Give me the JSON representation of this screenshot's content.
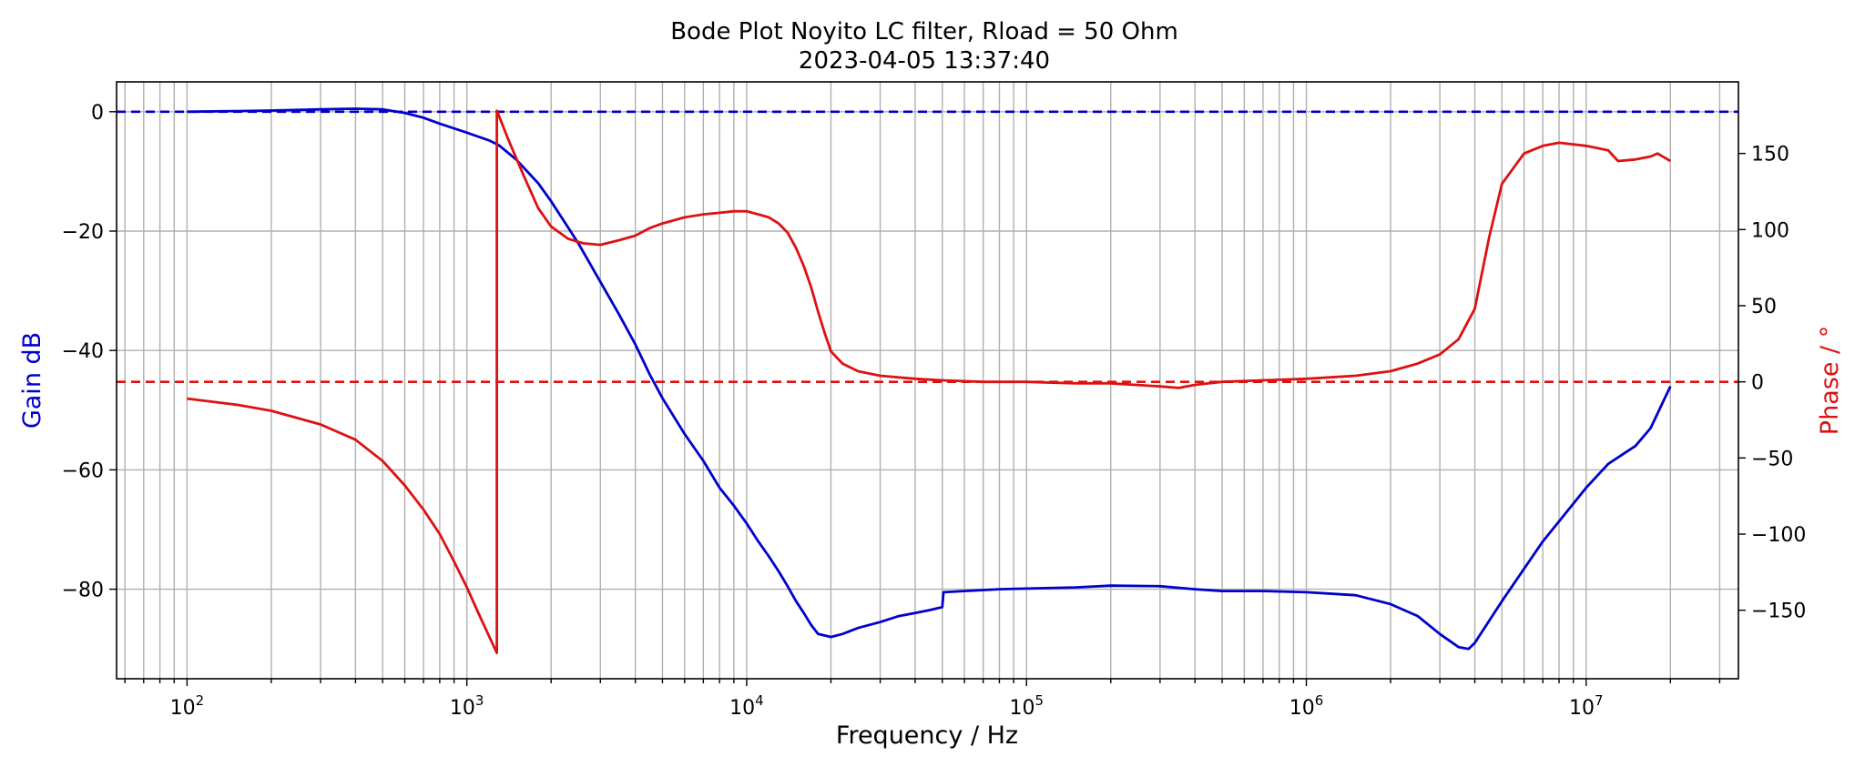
{
  "chart_data": {
    "type": "line",
    "title": "Bode Plot Noyito LC filter, Rload = 50 Ohm",
    "subtitle": "2023-04-05 13:37:40",
    "xlabel": "Frequency / Hz",
    "ylabel_left": "Gain dB",
    "ylabel_right": "Phase / °",
    "xscale": "log",
    "xlim": [
      56,
      35000000
    ],
    "ylim_left": [
      -95,
      5
    ],
    "ylim_right": [
      -195,
      197
    ],
    "grid": true,
    "x_ticks": [
      {
        "base": "10",
        "exp": "2",
        "value": 100
      },
      {
        "base": "10",
        "exp": "3",
        "value": 1000
      },
      {
        "base": "10",
        "exp": "4",
        "value": 10000
      },
      {
        "base": "10",
        "exp": "5",
        "value": 100000
      },
      {
        "base": "10",
        "exp": "6",
        "value": 1000000
      },
      {
        "base": "10",
        "exp": "7",
        "value": 10000000
      }
    ],
    "y_ticks_left": [
      {
        "label": "0",
        "value": 0
      },
      {
        "label": "−20",
        "value": -20
      },
      {
        "label": "−40",
        "value": -40
      },
      {
        "label": "−60",
        "value": -60
      },
      {
        "label": "−80",
        "value": -80
      }
    ],
    "y_ticks_right": [
      {
        "label": "150",
        "value": 150
      },
      {
        "label": "100",
        "value": 100
      },
      {
        "label": "50",
        "value": 50
      },
      {
        "label": "0",
        "value": 0
      },
      {
        "label": "−50",
        "value": -50
      },
      {
        "label": "−100",
        "value": -100
      },
      {
        "label": "−150",
        "value": -150
      }
    ],
    "reference_lines": [
      {
        "axis": "left",
        "value": 0,
        "color": "#0000cc",
        "style": "dashed"
      },
      {
        "axis": "right",
        "value": 0,
        "color": "#dd1111",
        "style": "dashed"
      }
    ],
    "series": [
      {
        "axis": "left",
        "color": "#0000cc",
        "x": [
          100,
          150,
          200,
          300,
          400,
          500,
          600,
          700,
          800,
          1000,
          1200,
          1300,
          1500,
          1800,
          2000,
          2500,
          3000,
          3500,
          4000,
          4500,
          5000,
          6000,
          7000,
          8000,
          9000,
          10000,
          11000,
          12000,
          13000,
          14000,
          15000,
          16000,
          17000,
          18000,
          20000,
          22000,
          25000,
          30000,
          35000,
          40000,
          45000,
          50000,
          50500,
          60000,
          80000,
          100000,
          150000,
          200000,
          300000,
          400000,
          500000,
          700000,
          1000000,
          1500000,
          2000000,
          2500000,
          3000000,
          3500000,
          3800000,
          4000000,
          5000000,
          7000000,
          10000000,
          12000000,
          15000000,
          17000000,
          20000000
        ],
        "y": [
          0,
          0.1,
          0.2,
          0.4,
          0.5,
          0.4,
          -0.2,
          -1,
          -2,
          -3.5,
          -4.8,
          -5.6,
          -8,
          -12,
          -15,
          -22,
          -28.5,
          -34,
          -39,
          -44,
          -48,
          -54,
          -58.5,
          -63,
          -66,
          -69,
          -72,
          -74.5,
          -77,
          -79.5,
          -82,
          -84,
          -86,
          -87.5,
          -88,
          -87.5,
          -86.5,
          -85.5,
          -84.5,
          -84,
          -83.5,
          -83,
          -80.5,
          -80.3,
          -80,
          -79.9,
          -79.7,
          -79.4,
          -79.5,
          -80,
          -80.3,
          -80.3,
          -80.5,
          -81,
          -82.5,
          -84.5,
          -87.5,
          -89.7,
          -90,
          -89,
          -82,
          -72,
          -63,
          -59,
          -56,
          -53,
          -46
        ]
      },
      {
        "axis": "right",
        "color": "#dd1111",
        "x": [
          100,
          150,
          200,
          300,
          400,
          500,
          600,
          700,
          800,
          900,
          1000,
          1100,
          1200,
          1280,
          1280,
          1300,
          1400,
          1600,
          1800,
          2000,
          2300,
          2600,
          3000,
          3500,
          4000,
          4500,
          5000,
          6000,
          7000,
          8000,
          9000,
          10000,
          11000,
          12000,
          13000,
          14000,
          15000,
          16000,
          17000,
          18000,
          19000,
          20000,
          22000,
          25000,
          30000,
          40000,
          50000,
          70000,
          100000,
          150000,
          200000,
          300000,
          350000,
          400000,
          500000,
          700000,
          1000000,
          1500000,
          2000000,
          2500000,
          3000000,
          3500000,
          4000000,
          4500000,
          5000000,
          6000000,
          7000000,
          8000000,
          10000000,
          12000000,
          13000000,
          15000000,
          17000000,
          18000000,
          20000000
        ],
        "y": [
          -11,
          -15,
          -19,
          -28,
          -38,
          -52,
          -68,
          -84,
          -100,
          -118,
          -135,
          -152,
          -167,
          -178,
          178,
          175,
          160,
          135,
          114,
          102,
          94,
          91,
          90,
          93,
          96,
          101,
          104,
          108,
          110,
          111,
          112,
          112,
          110,
          108,
          104,
          98,
          88,
          76,
          62,
          46,
          32,
          20,
          12,
          7,
          4,
          2,
          1,
          0,
          0,
          -1,
          -1,
          -3,
          -4,
          -2,
          0,
          1,
          2,
          4,
          7,
          12,
          18,
          28,
          48,
          95,
          130,
          150,
          155,
          157,
          155,
          152,
          145,
          146,
          148,
          150,
          145
        ]
      }
    ]
  }
}
